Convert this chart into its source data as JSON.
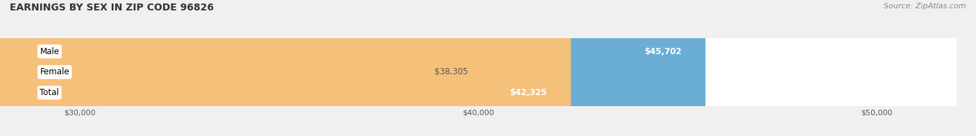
{
  "title": "EARNINGS BY SEX IN ZIP CODE 96826",
  "source": "Source: ZipAtlas.com",
  "categories": [
    "Male",
    "Female",
    "Total"
  ],
  "values": [
    45702,
    38305,
    42325
  ],
  "bar_colors": [
    "#6aaed6",
    "#f4a9bb",
    "#f5c07a"
  ],
  "value_labels": [
    "$45,702",
    "$38,305",
    "$42,325"
  ],
  "label_inside": [
    true,
    false,
    true
  ],
  "xmin": 28000,
  "xmax": 52000,
  "xticks": [
    30000,
    40000,
    50000
  ],
  "xtick_labels": [
    "$30,000",
    "$40,000",
    "$50,000"
  ],
  "background_color": "#f0f0f0",
  "title_fontsize": 10,
  "source_fontsize": 8,
  "bar_label_fontsize": 8.5,
  "category_fontsize": 8.5,
  "figsize": [
    14.06,
    1.96
  ],
  "dpi": 100
}
